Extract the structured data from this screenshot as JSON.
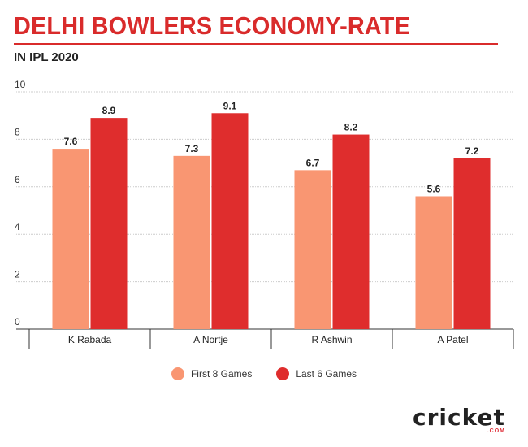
{
  "header": {
    "title": "DELHI BOWLERS ECONOMY-RATE",
    "subtitle": "IN IPL 2020"
  },
  "chart_data": {
    "type": "bar",
    "title": "DELHI BOWLERS ECONOMY-RATE",
    "subtitle": "IN IPL 2020",
    "categories": [
      "K Rabada",
      "A Nortje",
      "R Ashwin",
      "A Patel"
    ],
    "series": [
      {
        "name": "First 8 Games",
        "values": [
          7.6,
          7.3,
          6.7,
          5.6
        ],
        "color": "#f99672"
      },
      {
        "name": "Last 6 Games",
        "values": [
          8.9,
          9.1,
          8.2,
          7.2
        ],
        "color": "#df2d2d"
      }
    ],
    "yticks": [
      0,
      2,
      4,
      6,
      8,
      10
    ],
    "ylim": [
      0,
      10
    ],
    "grid": true,
    "legend": "bottom-center",
    "data_labels": true
  },
  "logo": {
    "word": "cricket",
    "sub": ".COM"
  }
}
